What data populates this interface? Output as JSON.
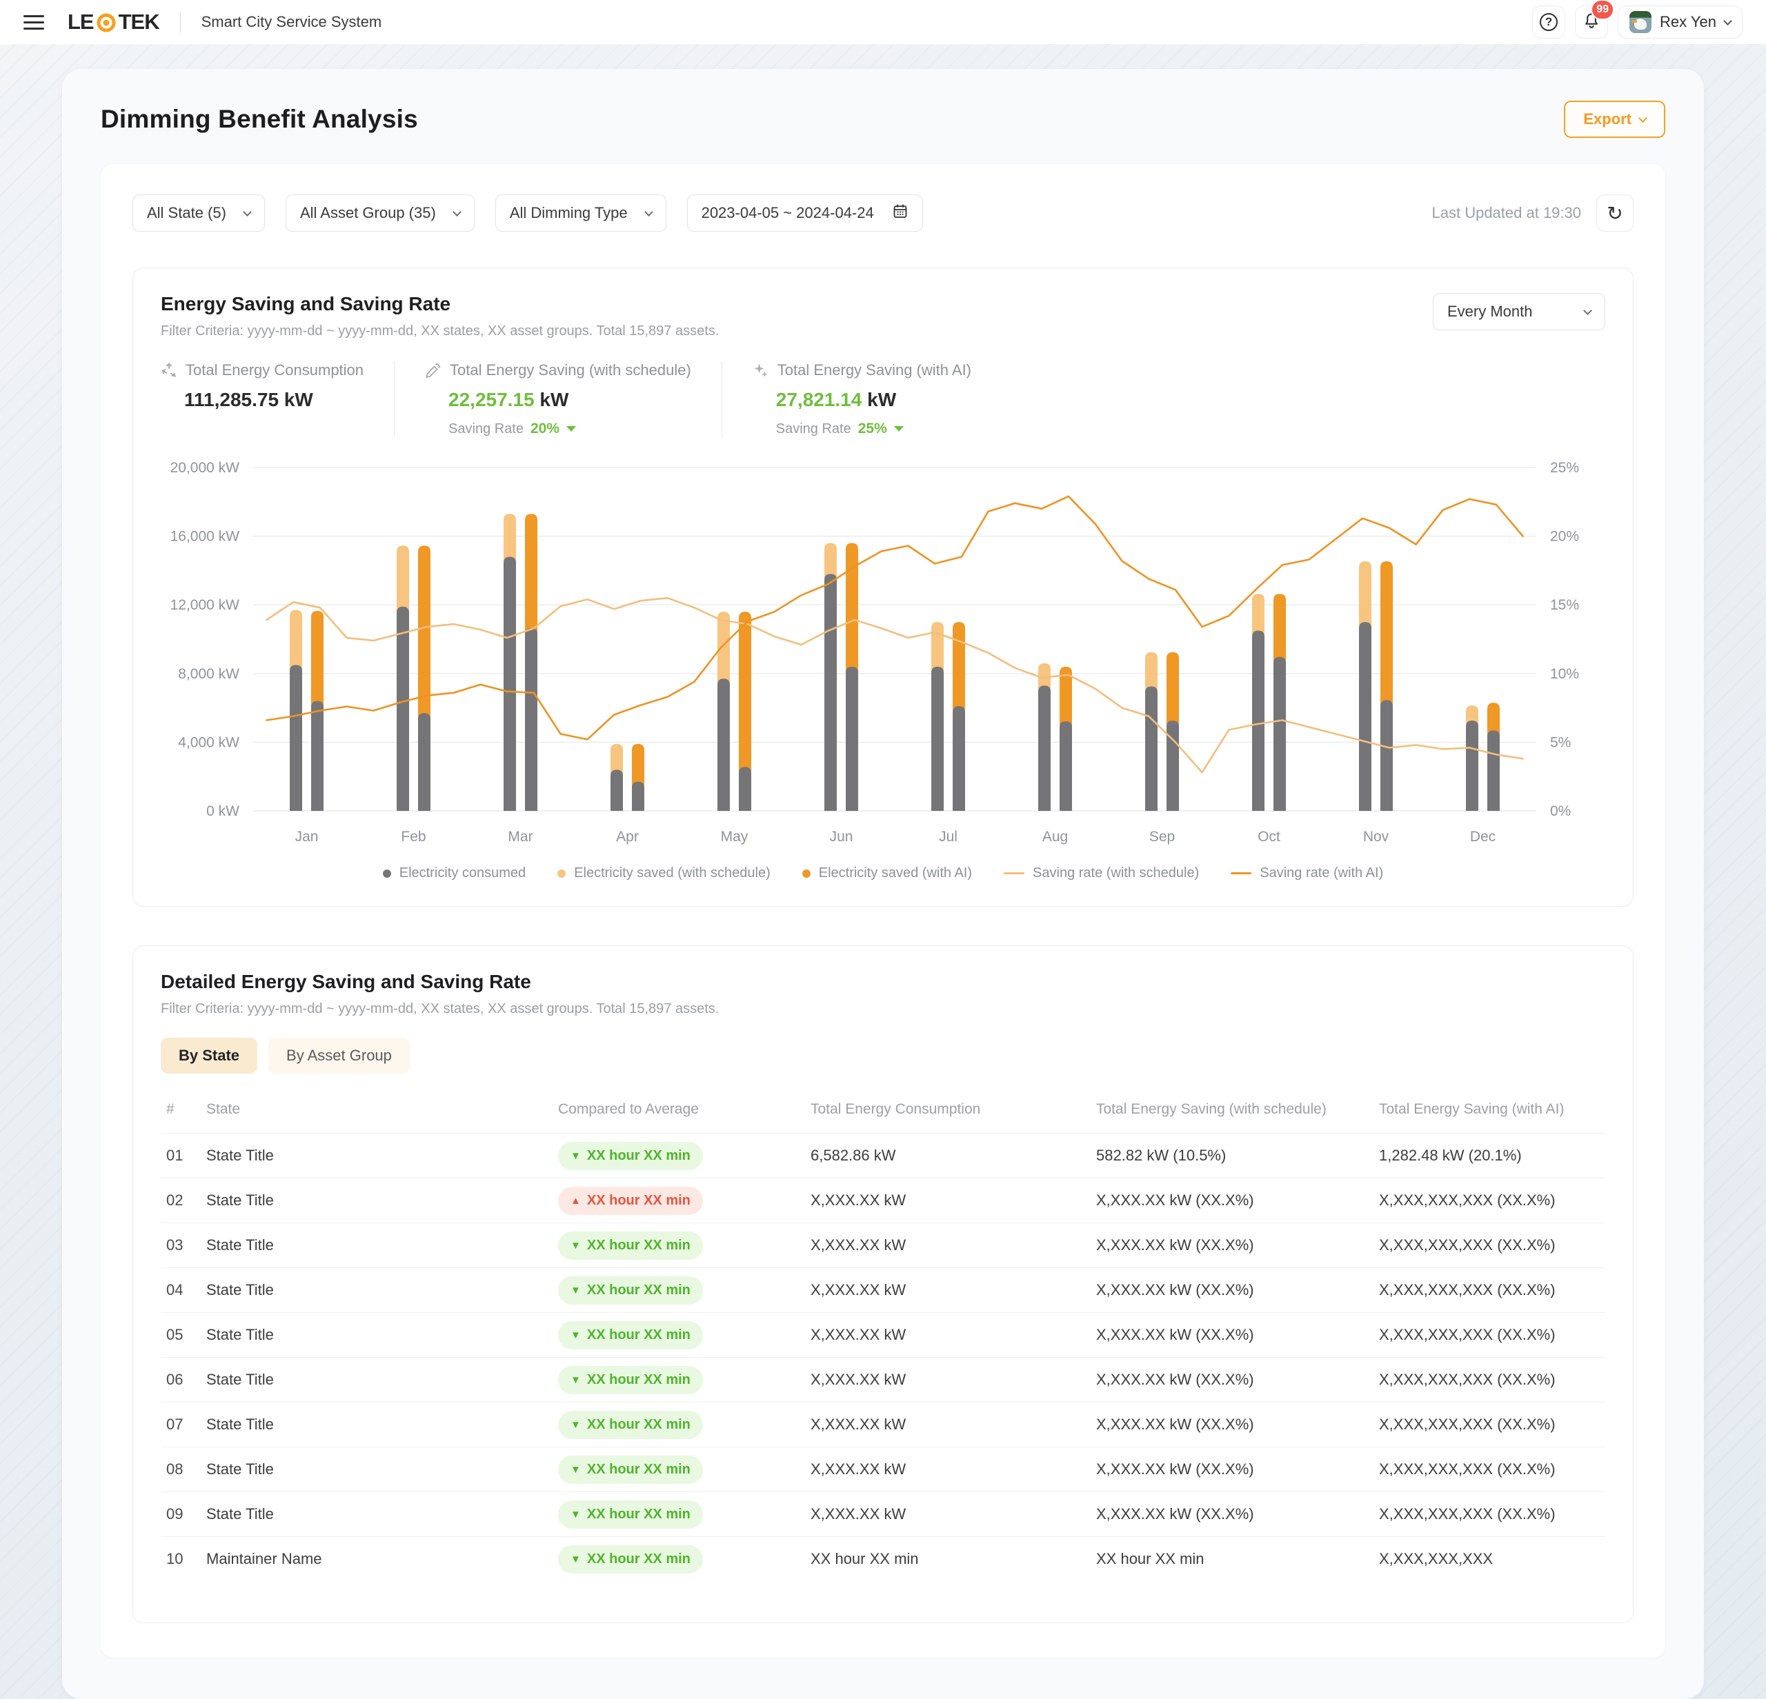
{
  "nav": {
    "brand_left": "LE",
    "brand_right": "TEK",
    "app_name": "Smart City Service System",
    "badge": "99",
    "user_name": "Rex Yen"
  },
  "page": {
    "title": "Dimming Benefit Analysis",
    "export_label": "Export",
    "last_updated": "Last Updated at 19:30"
  },
  "filters": {
    "state": "All State (5)",
    "asset_group": "All Asset Group (35)",
    "dimming_type": "All Dimming Type",
    "date_range": "2023-04-05 ~ 2024-04-24"
  },
  "chart_card": {
    "title": "Energy Saving and Saving Rate",
    "subtitle": "Filter Criteria: yyyy-mm-dd ~ yyyy-mm-dd, XX states, XX asset groups. Total 15,897 assets.",
    "interval": "Every Month",
    "stats": [
      {
        "icon": "recycle-icon",
        "label": "Total Energy Consumption",
        "value": "111,285.75",
        "unit": "kW"
      },
      {
        "icon": "pencil-icon",
        "label": "Total Energy Saving (with schedule)",
        "value": "22,257.15",
        "unit": "kW",
        "rate_label": "Saving Rate",
        "rate": "20%"
      },
      {
        "icon": "ai-sparkle-icon",
        "label": "Total Energy Saving (with AI)",
        "value": "27,821.14",
        "unit": "kW",
        "rate_label": "Saving Rate",
        "rate": "25%"
      }
    ]
  },
  "chart_data": {
    "type": "bar+line",
    "categories": [
      "Jan",
      "Feb",
      "Mar",
      "Apr",
      "May",
      "Jun",
      "Jul",
      "Aug",
      "Sep",
      "Oct",
      "Nov",
      "Dec"
    ],
    "y_left": {
      "label": "kW",
      "max": 20000,
      "ticks": [
        "0 kW",
        "4,000 kW",
        "8,000 kW",
        "12,000 kW",
        "16,000 kW",
        "20,000 kW"
      ]
    },
    "y_right": {
      "label": "%",
      "max": 25,
      "ticks": [
        "0%",
        "5%",
        "10%",
        "15%",
        "20%",
        "25%"
      ]
    },
    "bars": {
      "consumed_schedule": [
        8500,
        11900,
        14800,
        2400,
        7700,
        13800,
        8400,
        7300,
        7250,
        10500,
        11000,
        5260
      ],
      "total_schedule": [
        11700,
        15450,
        17300,
        3900,
        11600,
        15600,
        11000,
        8600,
        9240,
        12640,
        14540,
        6140
      ],
      "consumed_ai": [
        6400,
        5700,
        10650,
        1700,
        2560,
        8400,
        6100,
        5220,
        5260,
        8970,
        6450,
        4690
      ],
      "total_ai": [
        11650,
        15450,
        17300,
        3900,
        11600,
        15600,
        11000,
        8400,
        9240,
        12640,
        14540,
        6300
      ]
    },
    "lines": {
      "saving_rate_schedule": [
        13.9,
        15.2,
        14.8,
        12.6,
        12.4,
        12.9,
        13.4,
        13.6,
        13.2,
        12.6,
        13.3,
        14.9,
        15.4,
        14.7,
        15.3,
        15.5,
        14.8,
        13.9,
        13.6,
        12.7,
        12.1,
        13.1,
        13.9,
        13.3,
        12.6,
        13.0,
        12.3,
        11.5,
        10.4,
        9.7,
        9.9,
        8.9,
        7.5,
        6.9,
        5.0,
        2.8,
        5.9,
        6.3,
        6.6,
        6.1,
        5.6,
        5.1,
        4.6,
        4.8,
        4.5,
        4.6,
        4.1,
        3.8
      ],
      "saving_rate_ai": [
        6.6,
        6.9,
        7.3,
        7.6,
        7.3,
        7.9,
        8.4,
        8.6,
        9.2,
        8.7,
        8.6,
        5.6,
        5.2,
        7.0,
        7.7,
        8.3,
        9.4,
        11.9,
        13.8,
        14.5,
        15.7,
        16.5,
        17.8,
        18.9,
        19.3,
        18.0,
        18.5,
        21.8,
        22.4,
        22.0,
        22.9,
        20.9,
        18.2,
        16.9,
        16.1,
        13.4,
        14.2,
        16.1,
        17.9,
        18.3,
        19.8,
        21.3,
        20.6,
        19.4,
        21.9,
        22.7,
        22.3,
        20.0
      ]
    },
    "colors": {
      "consumed": "#757577",
      "saved_schedule": "#f7c57f",
      "saved_ai": "#ef9826",
      "line_schedule": "#f4be7c",
      "line_ai": "#ee9322"
    },
    "legend": [
      {
        "label": "Electricity consumed",
        "swatch": "dot",
        "color": "#757577"
      },
      {
        "label": "Electricity saved (with schedule)",
        "swatch": "dot",
        "color": "#f7c57f"
      },
      {
        "label": "Electricity saved (with AI)",
        "swatch": "dot",
        "color": "#ef9826"
      },
      {
        "label": "Saving rate (with schedule)",
        "swatch": "line",
        "color": "#f4be7c"
      },
      {
        "label": "Saving rate (with AI)",
        "swatch": "line",
        "color": "#ee9322"
      }
    ]
  },
  "table": {
    "title": "Detailed Energy Saving and Saving Rate",
    "subtitle": "Filter Criteria: yyyy-mm-dd ~ yyyy-mm-dd, XX states, XX asset groups. Total 15,897 assets.",
    "tabs": [
      {
        "label": "By State",
        "active": true
      },
      {
        "label": "By Asset Group",
        "active": false
      }
    ],
    "columns": [
      "#",
      "State",
      "Compared to Average",
      "Total Energy Consumption",
      "Total Energy Saving (with schedule)",
      "Total Energy Saving (with AI)"
    ],
    "trend_icons": {
      "down": "▼",
      "up": "▲"
    },
    "rows": [
      {
        "index": "01",
        "name": "State Title",
        "trend": "down",
        "trend_text": "XX hour XX min",
        "consumption": "6,582.86 kW",
        "schedule": "582.82 kW (10.5%)",
        "ai": "1,282.48 kW (20.1%)"
      },
      {
        "index": "02",
        "name": "State Title",
        "trend": "up",
        "trend_text": "XX hour XX min",
        "consumption": "X,XXX.XX kW",
        "schedule": "X,XXX.XX kW (XX.X%)",
        "ai": "X,XXX,XXX,XXX (XX.X%)"
      },
      {
        "index": "03",
        "name": "State Title",
        "trend": "down",
        "trend_text": "XX hour XX min",
        "consumption": "X,XXX.XX kW",
        "schedule": "X,XXX.XX kW (XX.X%)",
        "ai": "X,XXX,XXX,XXX (XX.X%)"
      },
      {
        "index": "04",
        "name": "State Title",
        "trend": "down",
        "trend_text": "XX hour XX min",
        "consumption": "X,XXX.XX kW",
        "schedule": "X,XXX.XX kW (XX.X%)",
        "ai": "X,XXX,XXX,XXX (XX.X%)"
      },
      {
        "index": "05",
        "name": "State Title",
        "trend": "down",
        "trend_text": "XX hour XX min",
        "consumption": "X,XXX.XX kW",
        "schedule": "X,XXX.XX kW (XX.X%)",
        "ai": "X,XXX,XXX,XXX (XX.X%)"
      },
      {
        "index": "06",
        "name": "State Title",
        "trend": "down",
        "trend_text": "XX hour XX min",
        "consumption": "X,XXX.XX kW",
        "schedule": "X,XXX.XX kW (XX.X%)",
        "ai": "X,XXX,XXX,XXX (XX.X%)"
      },
      {
        "index": "07",
        "name": "State Title",
        "trend": "down",
        "trend_text": "XX hour XX min",
        "consumption": "X,XXX.XX kW",
        "schedule": "X,XXX.XX kW (XX.X%)",
        "ai": "X,XXX,XXX,XXX (XX.X%)"
      },
      {
        "index": "08",
        "name": "State Title",
        "trend": "down",
        "trend_text": "XX hour XX min",
        "consumption": "X,XXX.XX kW",
        "schedule": "X,XXX.XX kW (XX.X%)",
        "ai": "X,XXX,XXX,XXX (XX.X%)"
      },
      {
        "index": "09",
        "name": "State Title",
        "trend": "down",
        "trend_text": "XX hour XX min",
        "consumption": "X,XXX.XX kW",
        "schedule": "X,XXX.XX kW (XX.X%)",
        "ai": "X,XXX,XXX,XXX (XX.X%)"
      },
      {
        "index": "10",
        "name": "Maintainer Name",
        "trend": "down",
        "trend_text": "XX hour XX min",
        "consumption": "XX hour XX min",
        "schedule": "XX hour XX min",
        "ai": "X,XXX,XXX,XXX"
      }
    ]
  }
}
